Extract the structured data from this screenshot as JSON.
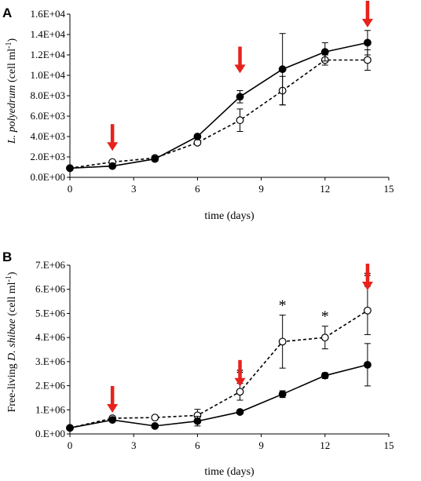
{
  "chart_data": [
    {
      "type": "line",
      "panel_label": "A",
      "xlabel": "time (days)",
      "ylabel_italic": "L. polyedrum",
      "ylabel_rest": " (cell ml",
      "ylabel_sup": "-1",
      "ylabel_end": ")",
      "xlim": [
        0,
        15
      ],
      "ylim": [
        0,
        16000
      ],
      "xticks": [
        0,
        3,
        6,
        9,
        12,
        15
      ],
      "xtick_labels": [
        "0",
        "3",
        "6",
        "9",
        "12",
        "15"
      ],
      "yticks": [
        0,
        2000,
        4000,
        6000,
        8000,
        10000,
        12000,
        14000,
        16000
      ],
      "ytick_labels": [
        "0.0E+00",
        "2.0E+03",
        "4.0E+03",
        "6.0E+03",
        "8.0E+03",
        "1.0E+04",
        "1.2E+04",
        "1.4E+04",
        "1.6E+04"
      ],
      "x": [
        0,
        2,
        4,
        6,
        8,
        10,
        12,
        14
      ],
      "series": [
        {
          "style": "solid-filled",
          "values": [
            900,
            1100,
            1800,
            4000,
            7900,
            10600,
            12300,
            13200
          ],
          "errors": [
            0,
            0,
            200,
            150,
            600,
            3500,
            900,
            1200
          ]
        },
        {
          "style": "dashed-open",
          "values": [
            900,
            1500,
            1900,
            3400,
            5600,
            8500,
            11500,
            11500
          ],
          "errors": [
            0,
            0,
            150,
            200,
            1100,
            1400,
            500,
            1000
          ]
        }
      ],
      "arrows_x": [
        2,
        8,
        14
      ],
      "arrow_color": "#e8221b",
      "asterisks": []
    },
    {
      "type": "line",
      "panel_label": "B",
      "xlabel": "time (days)",
      "ylabel_pre": "Free-living ",
      "ylabel_italic": "D. shibae",
      "ylabel_rest": " (cell ml",
      "ylabel_sup": "-1",
      "ylabel_end": ")",
      "xlim": [
        0,
        15
      ],
      "ylim": [
        0,
        7000000
      ],
      "xticks": [
        0,
        3,
        6,
        9,
        12,
        15
      ],
      "xtick_labels": [
        "0",
        "3",
        "6",
        "9",
        "12",
        "15"
      ],
      "yticks": [
        0,
        1000000,
        2000000,
        3000000,
        4000000,
        5000000,
        6000000,
        7000000
      ],
      "ytick_labels": [
        "0.E+00",
        "1.E+06",
        "2.E+06",
        "3.E+06",
        "4.E+06",
        "5.E+06",
        "6.E+06",
        "7.E+06"
      ],
      "x": [
        0,
        2,
        4,
        6,
        8,
        10,
        12,
        14
      ],
      "series": [
        {
          "style": "solid-filled",
          "values": [
            250000,
            580000,
            330000,
            530000,
            910000,
            1650000,
            2420000,
            2870000
          ],
          "errors": [
            0,
            0,
            0,
            200000,
            80000,
            140000,
            120000,
            880000
          ]
        },
        {
          "style": "dashed-open",
          "values": [
            250000,
            650000,
            680000,
            770000,
            1750000,
            3830000,
            4000000,
            5120000
          ],
          "errors": [
            0,
            60000,
            70000,
            250000,
            350000,
            1100000,
            470000,
            1000000
          ]
        }
      ],
      "arrows_x": [
        2,
        8,
        14
      ],
      "arrow_color": "#e8221b",
      "asterisks": [
        {
          "x": 8,
          "text": "*"
        },
        {
          "x": 10,
          "text": "*"
        },
        {
          "x": 12,
          "text": "*"
        },
        {
          "x": 14,
          "text": "*"
        }
      ]
    }
  ]
}
